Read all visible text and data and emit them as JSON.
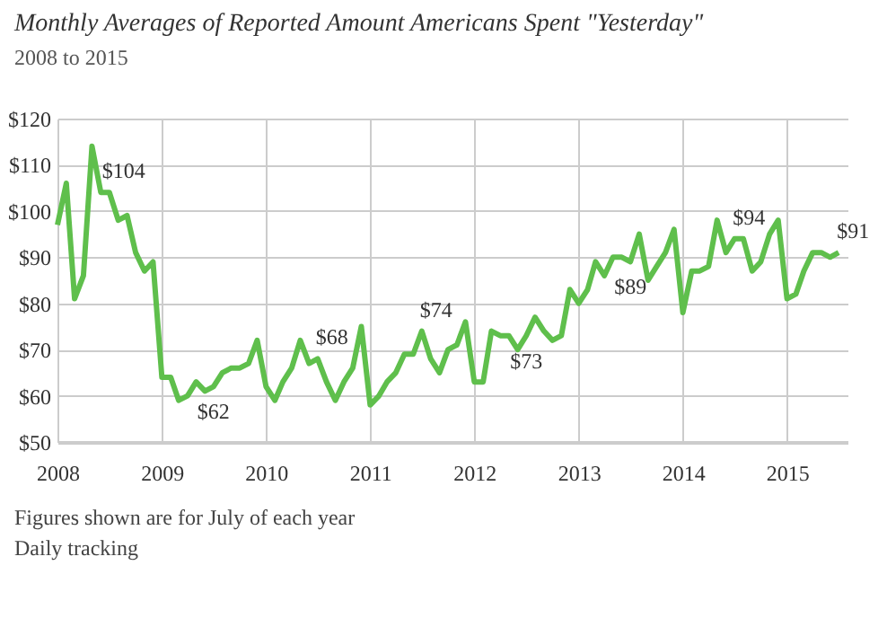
{
  "chart_data": {
    "type": "line",
    "title": "Monthly Averages of Reported Amount Americans Spent \"Yesterday\"",
    "subtitle": "2008 to 2015",
    "x": [
      "2008-01",
      "2008-02",
      "2008-03",
      "2008-04",
      "2008-05",
      "2008-06",
      "2008-07",
      "2008-08",
      "2008-09",
      "2008-10",
      "2008-11",
      "2008-12",
      "2009-01",
      "2009-02",
      "2009-03",
      "2009-04",
      "2009-05",
      "2009-06",
      "2009-07",
      "2009-08",
      "2009-09",
      "2009-10",
      "2009-11",
      "2009-12",
      "2010-01",
      "2010-02",
      "2010-03",
      "2010-04",
      "2010-05",
      "2010-06",
      "2010-07",
      "2010-08",
      "2010-09",
      "2010-10",
      "2010-11",
      "2010-12",
      "2011-01",
      "2011-02",
      "2011-03",
      "2011-04",
      "2011-05",
      "2011-06",
      "2011-07",
      "2011-08",
      "2011-09",
      "2011-10",
      "2011-11",
      "2011-12",
      "2012-01",
      "2012-02",
      "2012-03",
      "2012-04",
      "2012-05",
      "2012-06",
      "2012-07",
      "2012-08",
      "2012-09",
      "2012-10",
      "2012-11",
      "2012-12",
      "2013-01",
      "2013-02",
      "2013-03",
      "2013-04",
      "2013-05",
      "2013-06",
      "2013-07",
      "2013-08",
      "2013-09",
      "2013-10",
      "2013-11",
      "2013-12",
      "2014-01",
      "2014-02",
      "2014-03",
      "2014-04",
      "2014-05",
      "2014-06",
      "2014-07",
      "2014-08",
      "2014-09",
      "2014-10",
      "2014-11",
      "2014-12",
      "2015-01",
      "2015-02",
      "2015-03",
      "2015-04",
      "2015-05",
      "2015-06",
      "2015-07"
    ],
    "series": [
      {
        "color": "#5fbf4c",
        "values": [
          97,
          106,
          81,
          86,
          114,
          104,
          104,
          98,
          99,
          91,
          87,
          89,
          64,
          64,
          59,
          60,
          63,
          61,
          62,
          65,
          66,
          66,
          67,
          72,
          62,
          59,
          63,
          66,
          72,
          67,
          68,
          63,
          59,
          63,
          66,
          75,
          58,
          60,
          63,
          65,
          69,
          69,
          74,
          68,
          65,
          70,
          71,
          76,
          63,
          63,
          74,
          73,
          73,
          70,
          73,
          77,
          74,
          72,
          73,
          83,
          80,
          83,
          89,
          86,
          90,
          90,
          89,
          95,
          85,
          88,
          91,
          96,
          78,
          87,
          87,
          88,
          98,
          91,
          94,
          94,
          87,
          89,
          95,
          98,
          81,
          82,
          87,
          91,
          91,
          90,
          91
        ]
      }
    ],
    "xlim": [
      "2008-01",
      "2015-08"
    ],
    "xticks": [
      "2008",
      "2009",
      "2010",
      "2011",
      "2012",
      "2013",
      "2014",
      "2015"
    ],
    "ylim": [
      50,
      120
    ],
    "yticks": [
      {
        "value": 50,
        "label": "$50"
      },
      {
        "value": 60,
        "label": "$60"
      },
      {
        "value": 70,
        "label": "$70"
      },
      {
        "value": 80,
        "label": "$80"
      },
      {
        "value": 90,
        "label": "$90"
      },
      {
        "value": 100,
        "label": "$100"
      },
      {
        "value": 110,
        "label": "$110"
      },
      {
        "value": 120,
        "label": "$120"
      }
    ],
    "grid": true,
    "marker": "none",
    "line_style": "solid",
    "annotations": [
      {
        "text": "$104",
        "x": "2008-07",
        "y": 104
      },
      {
        "text": "$62",
        "x": "2009-07",
        "y": 62
      },
      {
        "text": "$68",
        "x": "2010-07",
        "y": 68
      },
      {
        "text": "$74",
        "x": "2011-07",
        "y": 74
      },
      {
        "text": "$73",
        "x": "2012-07",
        "y": 73
      },
      {
        "text": "$89",
        "x": "2013-07",
        "y": 89
      },
      {
        "text": "$94",
        "x": "2014-07",
        "y": 94
      },
      {
        "text": "$91",
        "x": "2015-07",
        "y": 91
      },
      "Figures shown are for July of each year",
      "Daily tracking"
    ]
  }
}
